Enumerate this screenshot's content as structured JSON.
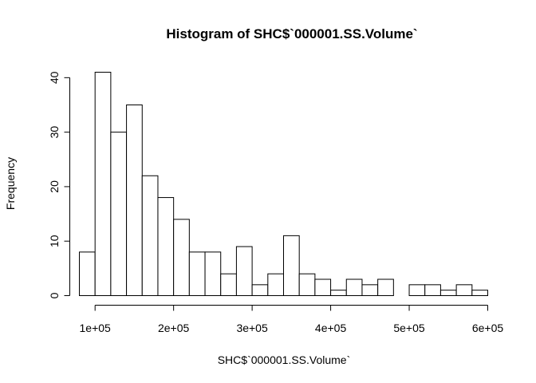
{
  "chart_data": {
    "type": "bar",
    "title": "Histogram of SHC$`000001.SS.Volume`",
    "xlabel": "SHC$`000001.SS.Volume`",
    "ylabel": "Frequency",
    "bin_width": 20000,
    "bins_start": [
      80000,
      100000,
      120000,
      140000,
      160000,
      180000,
      200000,
      220000,
      240000,
      260000,
      280000,
      300000,
      320000,
      340000,
      360000,
      380000,
      400000,
      420000,
      440000,
      460000,
      480000,
      500000,
      520000,
      540000,
      560000,
      580000
    ],
    "values": [
      8,
      41,
      30,
      35,
      22,
      18,
      14,
      8,
      8,
      4,
      9,
      2,
      4,
      11,
      4,
      3,
      1,
      3,
      2,
      3,
      0,
      2,
      2,
      1,
      2,
      1
    ],
    "xlim": [
      80000,
      600000
    ],
    "ylim": [
      0,
      41
    ],
    "x_ticks": [
      100000,
      200000,
      300000,
      400000,
      500000,
      600000
    ],
    "x_tick_labels": [
      "1e+05",
      "2e+05",
      "3e+05",
      "4e+05",
      "5e+05",
      "6e+05"
    ],
    "y_ticks": [
      0,
      10,
      20,
      30,
      40
    ],
    "y_tick_labels": [
      "0",
      "10",
      "20",
      "30",
      "40"
    ],
    "grid": false,
    "legend": "none",
    "bar_fill": "#ffffff",
    "bar_stroke": "#000000"
  }
}
